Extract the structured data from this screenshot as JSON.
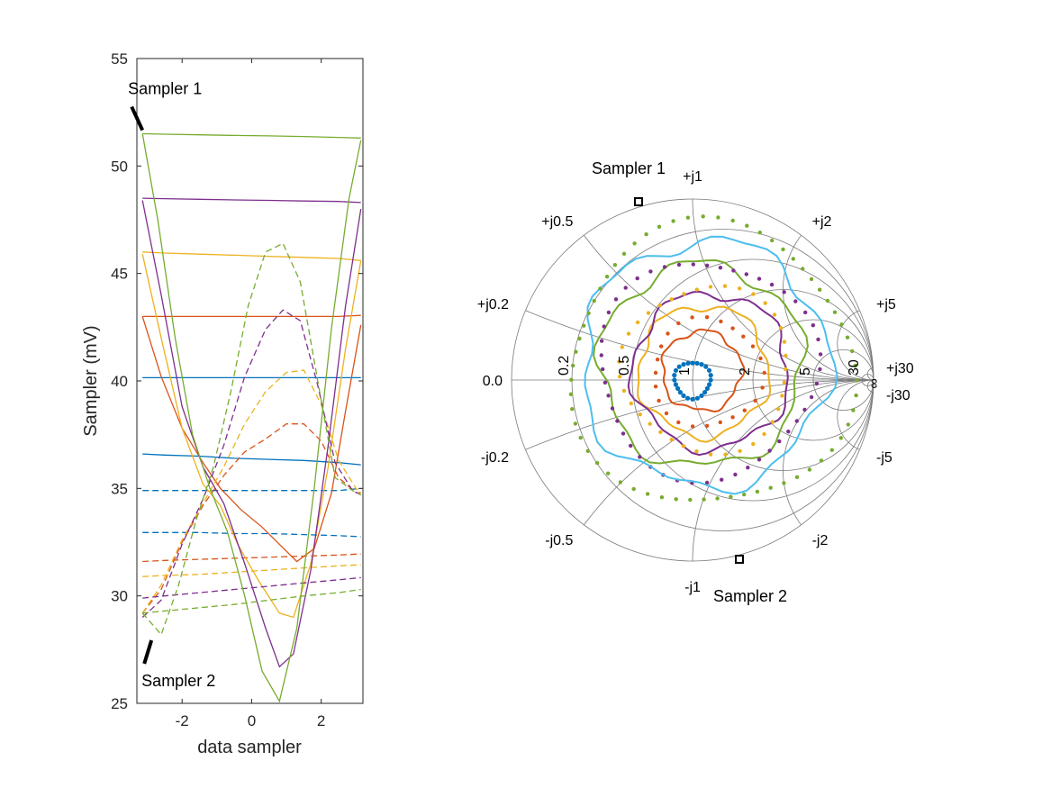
{
  "colors": {
    "blue": "#0072BD",
    "orange": "#D95319",
    "yellow": "#EDB120",
    "purple": "#7E2F8E",
    "green": "#77AC30",
    "cyan": "#4DBEEE"
  },
  "chart_data": [
    {
      "type": "line",
      "xlabel": "data sampler",
      "ylabel": "Sampler (mV)",
      "xlim": [
        -3.3,
        3.2
      ],
      "ylim": [
        25,
        55
      ],
      "xticks": [
        "-2",
        "0",
        "2"
      ],
      "yticks": [
        "25",
        "30",
        "35",
        "40",
        "45",
        "50",
        "55"
      ],
      "grid": false,
      "annotations": [
        {
          "text": "Sampler 1",
          "x": -3.14,
          "y": 51.5
        },
        {
          "text": "Sampler 2",
          "x": -3.14,
          "y": 28.1
        }
      ],
      "series": [
        {
          "color": "blue",
          "style": "solid",
          "x": [
            -3.14,
            -2.5,
            -1.5,
            -0.5,
            0.5,
            1.5,
            2.5,
            3.14
          ],
          "y": [
            36.6,
            36.55,
            36.5,
            36.4,
            36.35,
            36.3,
            36.2,
            36.1
          ]
        },
        {
          "color": "blue",
          "style": "solid",
          "x": [
            -3.14,
            -2.5,
            -1.5,
            -0.5,
            0.5,
            1.5,
            2.5,
            3.14
          ],
          "y": [
            40.15,
            40.15,
            40.15,
            40.15,
            40.15,
            40.15,
            40.15,
            40.15
          ]
        },
        {
          "color": "blue",
          "style": "dashed",
          "x": [
            -3.14,
            -2.5,
            -1.5,
            -0.5,
            0.5,
            1.5,
            2.5,
            3.14
          ],
          "y": [
            34.9,
            34.9,
            34.9,
            34.9,
            34.9,
            34.9,
            34.9,
            35.0
          ]
        },
        {
          "color": "blue",
          "style": "dashed",
          "x": [
            -3.14,
            -2.5,
            -1.5,
            -0.5,
            0.5,
            1.5,
            2.5,
            3.14
          ],
          "y": [
            32.95,
            32.95,
            32.95,
            32.9,
            32.9,
            32.85,
            32.8,
            32.75
          ]
        },
        {
          "color": "orange",
          "style": "solid",
          "x": [
            -3.14,
            -2.5,
            -1.5,
            -0.5,
            0.5,
            1.5,
            2.5,
            3.14
          ],
          "y": [
            43.0,
            43.0,
            43.0,
            43.0,
            43.0,
            43.0,
            43.0,
            43.05
          ]
        },
        {
          "color": "orange",
          "style": "solid",
          "x": [
            -3.14,
            -2.6,
            -2.0,
            -1.4,
            -0.9,
            -0.3,
            0.3,
            0.8,
            1.3,
            1.8,
            2.3,
            2.7,
            3.14
          ],
          "y": [
            43.0,
            40.2,
            37.8,
            36.2,
            35.0,
            34.0,
            33.2,
            32.4,
            31.6,
            32.2,
            34.8,
            38.6,
            42.6
          ]
        },
        {
          "color": "orange",
          "style": "dashed",
          "x": [
            -3.14,
            -2.5,
            -1.5,
            -0.5,
            0.5,
            1.5,
            2.5,
            3.14
          ],
          "y": [
            31.6,
            31.65,
            31.7,
            31.75,
            31.8,
            31.85,
            31.9,
            31.95
          ]
        },
        {
          "color": "orange",
          "style": "dashed",
          "x": [
            -3.14,
            -2.6,
            -2.0,
            -1.4,
            -0.8,
            -0.2,
            0.4,
            1.0,
            1.5,
            2.0,
            2.5,
            3.0,
            3.14
          ],
          "y": [
            29.2,
            30.3,
            32.5,
            34.2,
            35.6,
            36.7,
            37.3,
            38.0,
            38.0,
            37.2,
            35.5,
            34.8,
            34.8
          ]
        },
        {
          "color": "yellow",
          "style": "solid",
          "x": [
            -3.14,
            -2.5,
            -1.5,
            -0.5,
            0.5,
            1.5,
            2.5,
            3.14
          ],
          "y": [
            46.0,
            45.95,
            45.9,
            45.85,
            45.8,
            45.75,
            45.7,
            45.6
          ]
        },
        {
          "color": "yellow",
          "style": "solid",
          "x": [
            -3.14,
            -2.6,
            -2.0,
            -1.4,
            -0.9,
            -0.4,
            0.2,
            0.8,
            1.2,
            1.7,
            2.2,
            2.7,
            3.14
          ],
          "y": [
            45.9,
            42.0,
            37.8,
            35.2,
            34.2,
            32.4,
            30.7,
            29.2,
            29.0,
            31.5,
            36.0,
            41.5,
            45.6
          ]
        },
        {
          "color": "yellow",
          "style": "dashed",
          "x": [
            -3.14,
            -2.5,
            -1.5,
            -0.5,
            0.5,
            1.5,
            2.5,
            3.14
          ],
          "y": [
            30.9,
            30.95,
            31.0,
            31.1,
            31.2,
            31.3,
            31.4,
            31.45
          ]
        },
        {
          "color": "yellow",
          "style": "dashed",
          "x": [
            -3.14,
            -2.6,
            -2.0,
            -1.4,
            -0.8,
            -0.2,
            0.4,
            1.0,
            1.5,
            2.0,
            2.5,
            3.0,
            3.14
          ],
          "y": [
            29.2,
            30.5,
            32.6,
            34.3,
            36.0,
            38.0,
            39.5,
            40.4,
            40.5,
            38.9,
            36.3,
            35.0,
            34.8
          ]
        },
        {
          "color": "purple",
          "style": "solid",
          "x": [
            -3.14,
            -2.5,
            -1.5,
            -0.5,
            0.5,
            1.5,
            2.5,
            3.14
          ],
          "y": [
            48.5,
            48.48,
            48.45,
            48.42,
            48.4,
            48.37,
            48.35,
            48.3
          ]
        },
        {
          "color": "purple",
          "style": "solid",
          "x": [
            -3.14,
            -2.6,
            -2.0,
            -1.4,
            -0.8,
            -0.2,
            0.4,
            0.8,
            1.2,
            1.7,
            2.2,
            2.7,
            3.14
          ],
          "y": [
            48.4,
            44.0,
            38.8,
            36.0,
            34.3,
            31.5,
            28.5,
            26.7,
            27.3,
            31.2,
            37.0,
            43.5,
            48.0
          ]
        },
        {
          "color": "purple",
          "style": "dashed",
          "x": [
            -3.14,
            -2.5,
            -1.5,
            -0.5,
            0.5,
            1.5,
            2.5,
            3.14
          ],
          "y": [
            29.9,
            30.0,
            30.15,
            30.3,
            30.45,
            30.6,
            30.75,
            30.85
          ]
        },
        {
          "color": "purple",
          "style": "dashed",
          "x": [
            -3.14,
            -2.6,
            -2.0,
            -1.4,
            -0.8,
            -0.2,
            0.4,
            0.9,
            1.4,
            1.9,
            2.4,
            2.9,
            3.14
          ],
          "y": [
            29.0,
            29.8,
            32.4,
            34.5,
            37.0,
            40.2,
            42.4,
            43.3,
            42.8,
            39.8,
            36.2,
            34.9,
            34.7
          ]
        },
        {
          "color": "green",
          "style": "solid",
          "x": [
            -3.14,
            -2.5,
            -1.5,
            -0.5,
            0.5,
            1.5,
            2.5,
            3.14
          ],
          "y": [
            51.5,
            51.48,
            51.45,
            51.42,
            51.4,
            51.37,
            51.33,
            51.3
          ]
        },
        {
          "color": "green",
          "style": "solid",
          "x": [
            -3.14,
            -2.7,
            -2.2,
            -1.7,
            -1.2,
            -0.7,
            -0.2,
            0.3,
            0.8,
            1.3,
            1.8,
            2.3,
            2.8,
            3.14
          ],
          "y": [
            51.5,
            47.5,
            42.0,
            37.5,
            35.0,
            33.0,
            30.0,
            26.5,
            25.1,
            28.5,
            35.0,
            42.5,
            48.5,
            51.2
          ]
        },
        {
          "color": "green",
          "style": "dashed",
          "x": [
            -3.14,
            -2.5,
            -1.5,
            -0.5,
            0.5,
            1.5,
            2.5,
            3.14
          ],
          "y": [
            29.2,
            29.3,
            29.45,
            29.6,
            29.8,
            30.0,
            30.15,
            30.3
          ]
        },
        {
          "color": "green",
          "style": "dashed",
          "x": [
            -3.14,
            -2.6,
            -2.1,
            -1.6,
            -1.1,
            -0.6,
            -0.1,
            0.4,
            0.9,
            1.4,
            1.9,
            2.4,
            2.9,
            3.14
          ],
          "y": [
            29.2,
            28.2,
            30.5,
            33.5,
            36.0,
            39.5,
            43.5,
            46.0,
            46.4,
            44.6,
            40.0,
            35.5,
            34.9,
            34.7
          ]
        }
      ]
    },
    {
      "type": "scatter",
      "chart": "smith",
      "grid": true,
      "real_ticks": [
        "0.0",
        "0.2",
        "0.5",
        "1",
        "2",
        "5",
        "30",
        "∞"
      ],
      "imag_ticks": [
        "+j0.2",
        "+j0.5",
        "+j1",
        "+j2",
        "+j5",
        "+j30",
        "-j0.2",
        "-j0.5",
        "-j1",
        "-j2",
        "-j5",
        "-j30"
      ],
      "annotations": [
        "Sampler 1",
        "Sampler 2"
      ],
      "series": [
        {
          "color": "blue",
          "style": "markers",
          "center": [
            0.0,
            0.0
          ],
          "radius": 0.1
        },
        {
          "color": "orange",
          "style": "solid",
          "center": [
            0.05,
            0.05
          ],
          "radius": 0.22
        },
        {
          "color": "orange",
          "style": "markers",
          "center": [
            0.08,
            0.04
          ],
          "radius": 0.3
        },
        {
          "color": "yellow",
          "style": "solid",
          "center": [
            0.06,
            0.05
          ],
          "radius": 0.36
        },
        {
          "color": "purple",
          "style": "solid",
          "center": [
            0.1,
            0.05
          ],
          "radius": 0.43
        },
        {
          "color": "yellow",
          "style": "markers",
          "center": [
            0.08,
            0.06
          ],
          "radius": 0.46
        },
        {
          "color": "green",
          "style": "solid",
          "center": [
            0.05,
            0.08
          ],
          "radius": 0.56
        },
        {
          "color": "purple",
          "style": "markers",
          "center": [
            0.08,
            0.06
          ],
          "radius": 0.6
        },
        {
          "color": "cyan",
          "style": "solid",
          "center": [
            0.07,
            0.09
          ],
          "radius": 0.68
        },
        {
          "color": "green",
          "style": "markers",
          "center": [
            0.1,
            0.08
          ],
          "radius": 0.78
        }
      ]
    }
  ]
}
